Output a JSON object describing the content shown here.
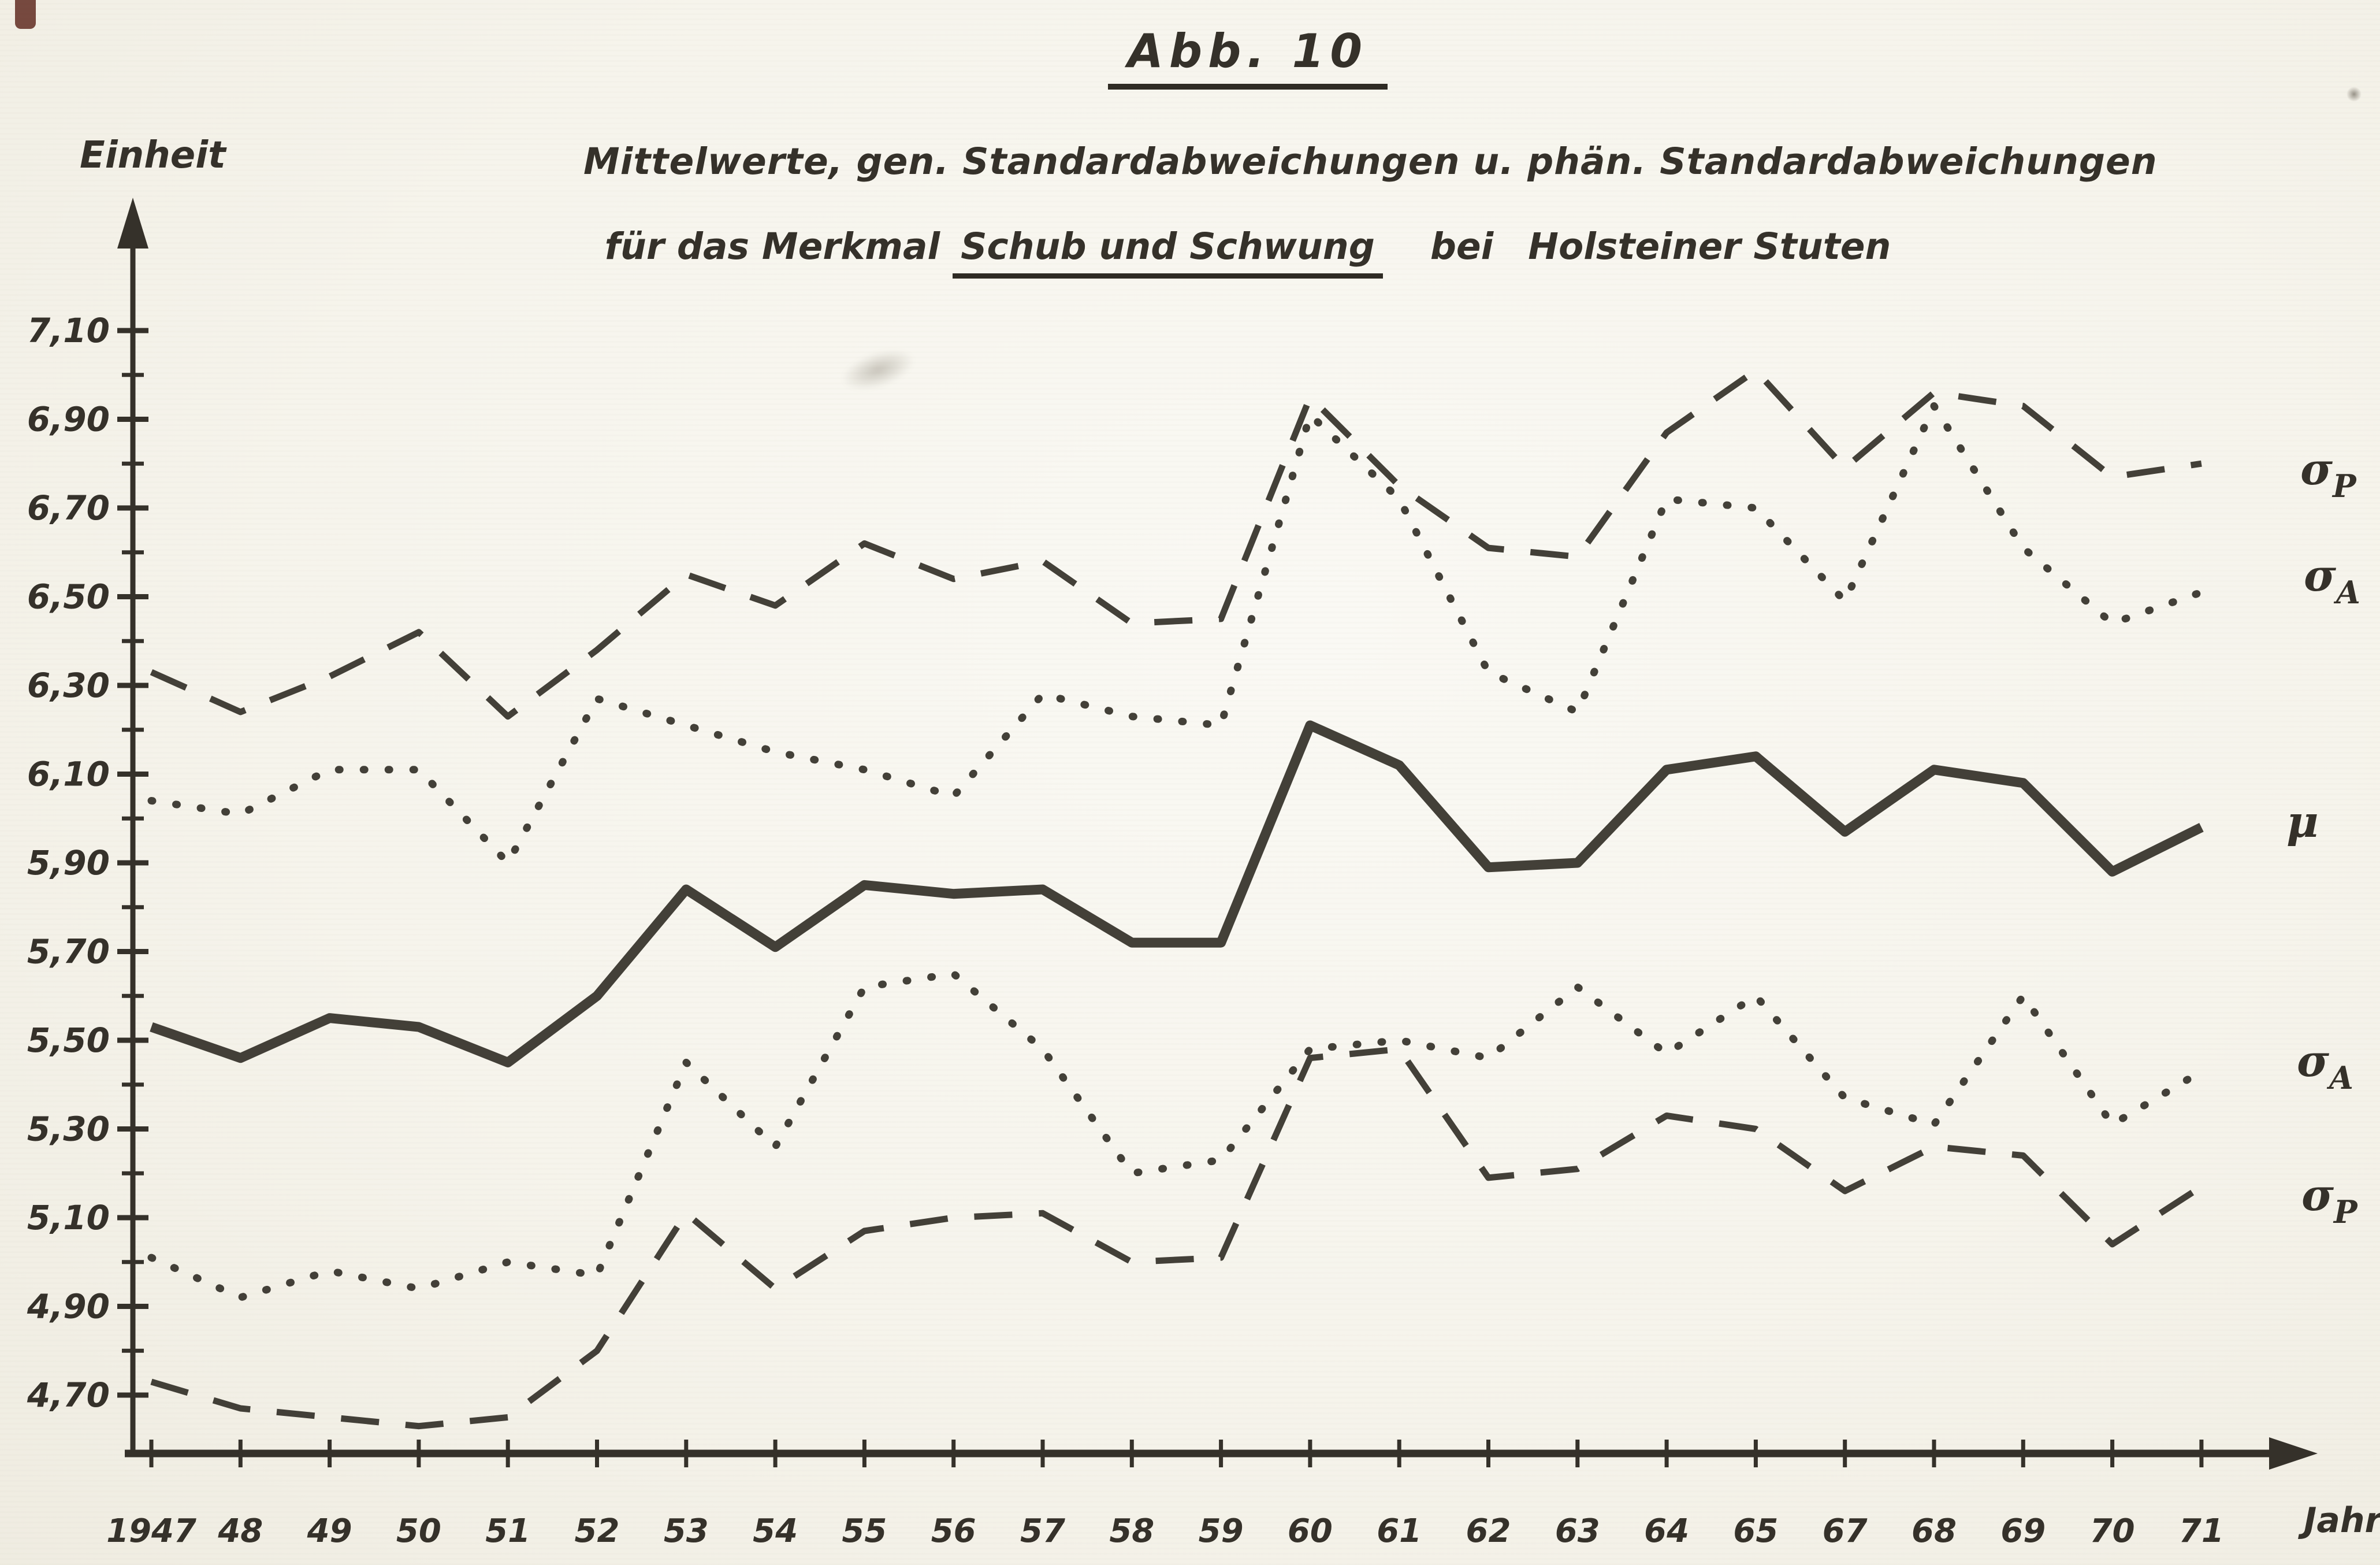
{
  "page": {
    "background": "#f6f4ec",
    "ink": "#35312a"
  },
  "header": {
    "figure_label": "Abb. 10",
    "title_line1": "Mittelwerte, gen. Standardabweichungen u. phän. Standardabweichungen",
    "title_line2_prefix": "für das Merkmal",
    "title_line2_underlined": "Schub und Schwung",
    "title_line2_mid": "bei",
    "title_line2_suffix": "Holsteiner Stuten"
  },
  "axes": {
    "y_label": "Einheit",
    "x_label": "Jahre"
  },
  "chart_data": {
    "type": "line",
    "title": "Abb. 10 — Mittelwerte, gen. Standardabweichungen u. phän. Standardabweichungen für das Merkmal Schub und Schwung bei Holsteiner Stuten",
    "xlabel": "Jahre",
    "ylabel": "Einheit",
    "ylim": [
      4.55,
      7.25
    ],
    "grid": false,
    "legend_position": "right-of-lines",
    "y_ticks": {
      "labeled_values": [
        7.1,
        6.9,
        6.7,
        6.5,
        6.3,
        6.1,
        5.9,
        5.7,
        5.5,
        5.3,
        5.1,
        4.9,
        4.7
      ],
      "labels": [
        "7,10",
        "6,90",
        "6,70",
        "6,50",
        "6,30",
        "6,10",
        "5,90",
        "5,70",
        "5,50",
        "5,30",
        "5,10",
        "4,90",
        "4,70"
      ],
      "minor_step": 0.1
    },
    "categories": [
      "1947",
      "48",
      "49",
      "50",
      "51",
      "52",
      "53",
      "54",
      "55",
      "56",
      "57",
      "58",
      "59",
      "60",
      "61",
      "62",
      "63",
      "64",
      "65",
      "67",
      "68",
      "69",
      "70",
      "71"
    ],
    "series": [
      {
        "name": "sigma-P-oben-phaen-standardabweichung",
        "label_glyph": "σ",
        "label_sub": "P",
        "style": "dashed",
        "values": [
          6.33,
          6.24,
          6.32,
          6.42,
          6.23,
          6.38,
          6.55,
          6.48,
          6.62,
          6.54,
          6.58,
          6.44,
          6.45,
          6.95,
          6.75,
          6.61,
          6.59,
          6.87,
          7.01,
          6.79,
          6.96,
          6.93,
          6.77,
          6.8
        ]
      },
      {
        "name": "sigma-A-oben-gen-standardabweichung",
        "label_glyph": "σ",
        "label_sub": "A",
        "style": "dotted",
        "values": [
          6.04,
          6.01,
          6.11,
          6.11,
          5.9,
          6.27,
          6.21,
          6.15,
          6.11,
          6.05,
          6.28,
          6.23,
          6.21,
          6.91,
          6.72,
          6.33,
          6.24,
          6.72,
          6.7,
          6.49,
          6.93,
          6.61,
          6.44,
          6.51
        ]
      },
      {
        "name": "mu-mittelwerte",
        "label_glyph": "μ",
        "label_sub": "",
        "style": "solid",
        "values": [
          5.53,
          5.46,
          5.55,
          5.53,
          5.45,
          5.6,
          5.84,
          5.71,
          5.85,
          5.83,
          5.84,
          5.72,
          5.72,
          6.21,
          6.12,
          5.89,
          5.9,
          6.11,
          6.14,
          5.97,
          6.11,
          6.08,
          5.88,
          5.98
        ]
      },
      {
        "name": "sigma-A-unten-gen-standardabweichung",
        "label_glyph": "σ",
        "label_sub": "A",
        "style": "dotted",
        "values": [
          5.01,
          4.92,
          4.98,
          4.94,
          5.0,
          4.97,
          5.45,
          5.26,
          5.62,
          5.65,
          5.48,
          5.2,
          5.23,
          5.48,
          5.5,
          5.46,
          5.62,
          5.47,
          5.6,
          5.37,
          5.31,
          5.6,
          5.31,
          5.43
        ]
      },
      {
        "name": "sigma-P-unten-phaen-standardabweichung",
        "label_glyph": "σ",
        "label_sub": "P",
        "style": "dashed",
        "values": [
          4.73,
          4.67,
          4.65,
          4.63,
          4.65,
          4.8,
          5.11,
          4.94,
          5.07,
          5.1,
          5.11,
          5.0,
          5.01,
          5.46,
          5.48,
          5.19,
          5.21,
          5.33,
          5.3,
          5.16,
          5.26,
          5.24,
          5.04,
          5.17
        ]
      }
    ]
  }
}
